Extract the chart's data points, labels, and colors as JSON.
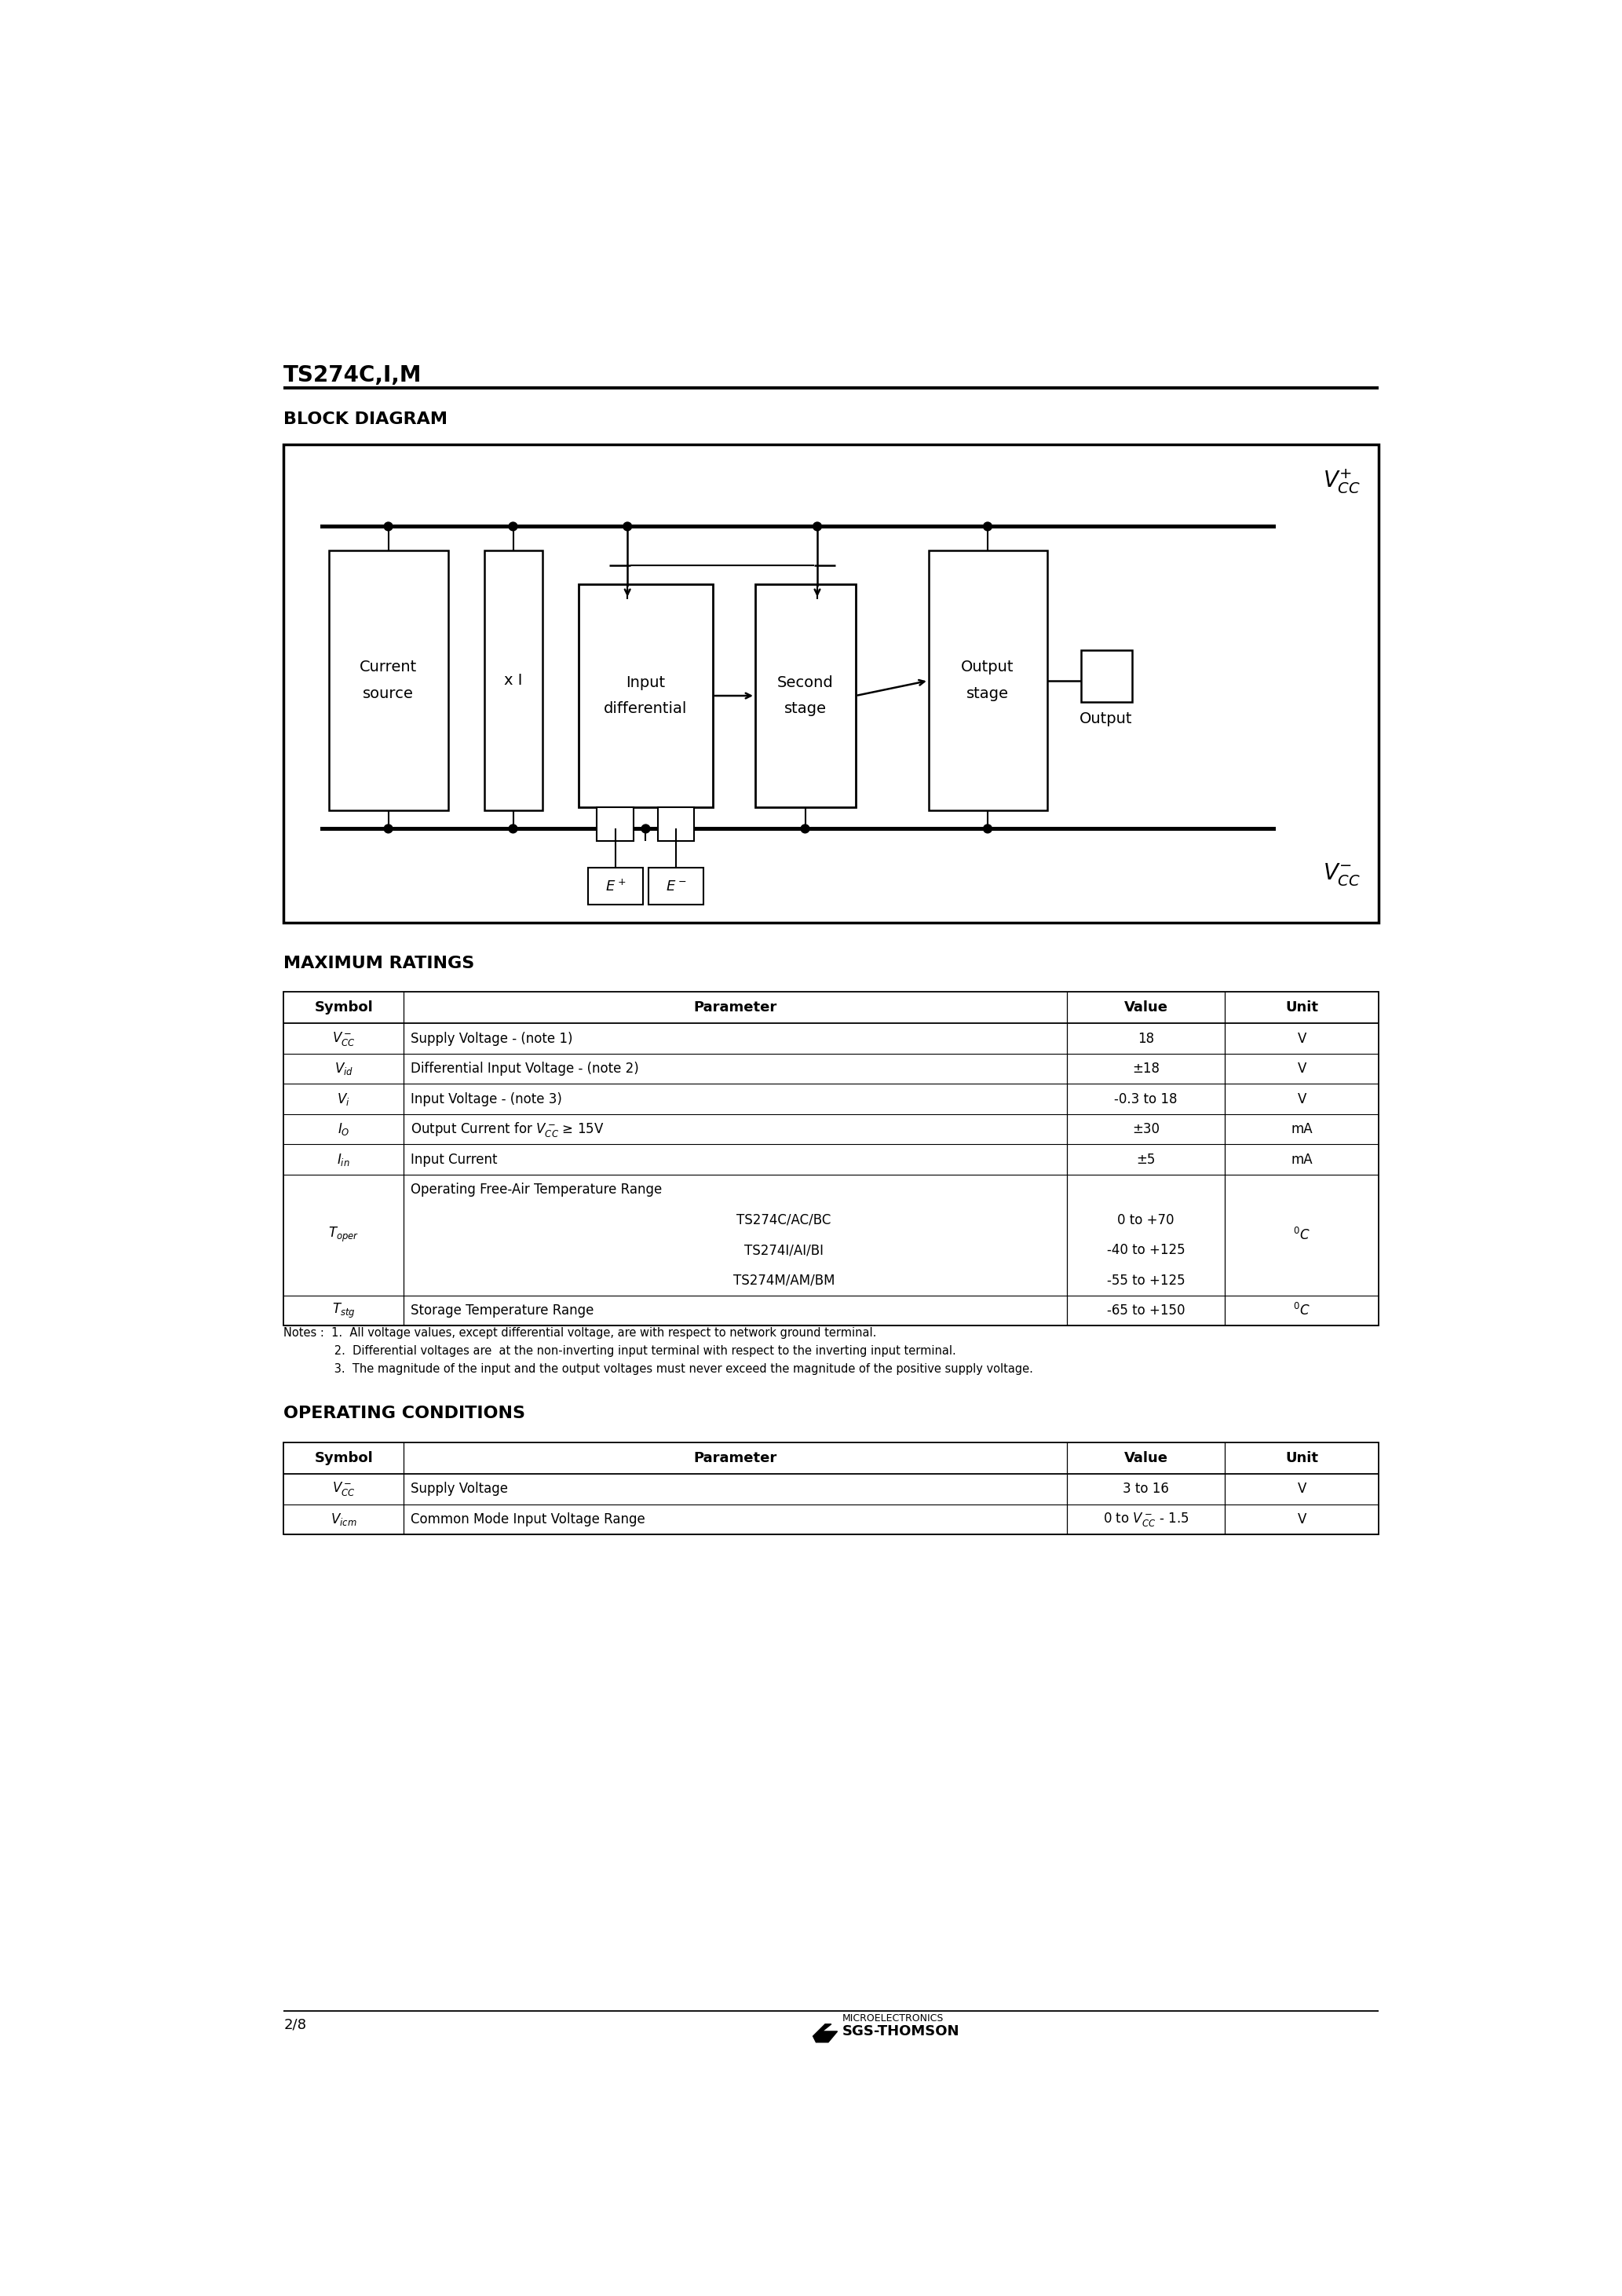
{
  "page_title": "TS274C,I,M",
  "bg_color": "#ffffff",
  "block_diagram_title": "BLOCK DIAGRAM",
  "max_ratings_title": "MAXIMUM RATINGS",
  "op_conditions_title": "OPERATING CONDITIONS",
  "mr_rows": [
    [
      "$V_{CC}^-$",
      "Supply Voltage - (note 1)",
      "18",
      "V"
    ],
    [
      "$V_{id}$",
      "Differential Input Voltage - (note 2)",
      "±18",
      "V"
    ],
    [
      "$V_i$",
      "Input Voltage - (note 3)",
      "-0.3 to 18",
      "V"
    ],
    [
      "$I_O$",
      "Output Current for $V_{CC}^-$ ≥ 15V",
      "±30",
      "mA"
    ],
    [
      "$I_{in}$",
      "Input Current",
      "±5",
      "mA"
    ],
    [
      "$T_{oper}$",
      "Operating Free-Air Temperature Range\n        TS274C/AC/BC\n        TS274I/AI/BI\n        TS274M/AM/BM",
      "0 to +70\n-40 to +125\n-55 to +125",
      "$^oC$"
    ],
    [
      "$T_{stg}$",
      "Storage Temperature Range",
      "-65 to +150",
      "$^oC$"
    ]
  ],
  "oc_rows": [
    [
      "$V_{CC}^-$",
      "Supply Voltage",
      "3 to 16",
      "V"
    ],
    [
      "$V_{icm}$",
      "Common Mode Input Voltage Range",
      "0 to $V_{CC}^-$ - 1.5",
      "V"
    ]
  ],
  "notes_lines": [
    "Notes :  1.  All voltage values, except differential voltage, are with respect to network ground terminal.",
    "              2.  Differential voltages are  at the non-inverting input terminal with respect to the inverting input terminal.",
    "              3.  The magnitude of the input and the output voltages must never exceed the magnitude of the positive supply voltage."
  ],
  "footer_page": "2/8"
}
